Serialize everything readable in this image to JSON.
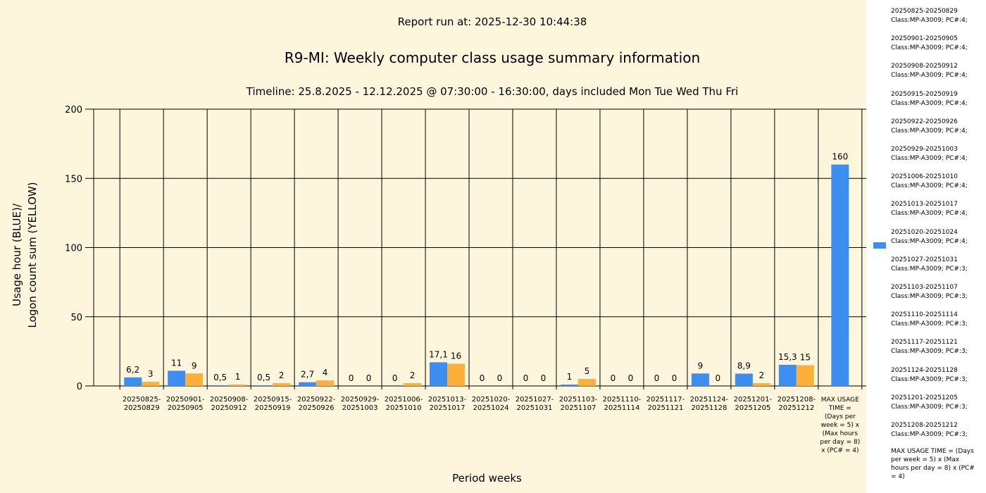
{
  "header": {
    "report_run": "Report run at: 2025-12-30 10:44:38",
    "title": "R9-MI: Weekly computer class usage summary information",
    "timeline": "Timeline:  25.8.2025  - 12.12.2025  @  07:30:00 -  16:30:00, days included Mon Tue Wed Thu Fri"
  },
  "colors": {
    "blue": "#3c8ef0",
    "yellow": "#fbb03b",
    "background": "#fdf5dc",
    "legend_bg": "#ffffff"
  },
  "chart_data": {
    "type": "bar",
    "ylim": [
      0,
      200
    ],
    "yticks": [
      0,
      50,
      100,
      150,
      200
    ],
    "ylabel_line1": "Usage hour (BLUE)/",
    "ylabel_line2": "Logon count sum (YELLOW)",
    "xlabel": "Period weeks",
    "grid": true,
    "categories": [
      [
        "20250825-",
        "20250829"
      ],
      [
        "20250901-",
        "20250905"
      ],
      [
        "20250908-",
        "20250912"
      ],
      [
        "20250915-",
        "20250919"
      ],
      [
        "20250922-",
        "20250926"
      ],
      [
        "20250929-",
        "20251003"
      ],
      [
        "20251006-",
        "20251010"
      ],
      [
        "20251013-",
        "20251017"
      ],
      [
        "20251020-",
        "20251024"
      ],
      [
        "20251027-",
        "20251031"
      ],
      [
        "20251103-",
        "20251107"
      ],
      [
        "20251110-",
        "20251114"
      ],
      [
        "20251117-",
        "20251121"
      ],
      [
        "20251124-",
        "20251128"
      ],
      [
        "20251201-",
        "20251205"
      ],
      [
        "20251208-",
        "20251212"
      ],
      [
        "MAX USAGE",
        "TIME =",
        "(Days per",
        "week = 5) x",
        "(Max hours",
        "per day = 8)",
        "x (PC# = 4)"
      ]
    ],
    "series": [
      {
        "color": "#3c8ef0",
        "values": [
          6.2,
          11,
          0.5,
          0.5,
          2.7,
          0,
          0,
          17.1,
          0,
          0,
          1,
          0,
          0,
          9,
          8.9,
          15.3,
          160
        ],
        "labels": [
          "6,2",
          "11",
          "0,5",
          "0,5",
          "2,7",
          "0",
          "0",
          "17,1",
          "0",
          "0",
          "1",
          "0",
          "0",
          "9",
          "8,9",
          "15,3",
          "160"
        ]
      },
      {
        "color": "#fbb03b",
        "values": [
          3,
          9,
          1,
          2,
          4,
          0,
          2,
          16,
          0,
          0,
          5,
          0,
          0,
          0,
          2,
          15,
          null
        ],
        "labels": [
          "3",
          "9",
          "1",
          "2",
          "4",
          "0",
          "2",
          "16",
          "0",
          "0",
          "5",
          "0",
          "0",
          "0",
          "2",
          "15",
          ""
        ]
      }
    ]
  },
  "legend": {
    "items": [
      [
        "20250825-20250829",
        "Class:MP-A3009; PC#:4;"
      ],
      [
        "20250901-20250905",
        "Class:MP-A3009; PC#:4;"
      ],
      [
        "20250908-20250912",
        "Class:MP-A3009; PC#:4;"
      ],
      [
        "20250915-20250919",
        "Class:MP-A3009; PC#:4;"
      ],
      [
        "20250922-20250926",
        "Class:MP-A3009; PC#:4;"
      ],
      [
        "20250929-20251003",
        "Class:MP-A3009; PC#:4;"
      ],
      [
        "20251006-20251010",
        "Class:MP-A3009; PC#:4;"
      ],
      [
        "20251013-20251017",
        "Class:MP-A3009; PC#:4;"
      ],
      [
        "20251020-20251024",
        "Class:MP-A3009; PC#:4;"
      ],
      [
        "20251027-20251031",
        "Class:MP-A3009; PC#:3;"
      ],
      [
        "20251103-20251107",
        "Class:MP-A3009; PC#:3;"
      ],
      [
        "20251110-20251114",
        "Class:MP-A3009; PC#:3;"
      ],
      [
        "20251117-20251121",
        "Class:MP-A3009; PC#:3;"
      ],
      [
        "20251124-20251128",
        "Class:MP-A3009; PC#:3;"
      ],
      [
        "20251201-20251205",
        "Class:MP-A3009; PC#:3;"
      ],
      [
        "20251208-20251212",
        "Class:MP-A3009; PC#:3;"
      ]
    ],
    "max_note": "MAX USAGE TIME =  (Days per week = 5) x (Max hours per day = 8) x (PC# = 4)"
  }
}
